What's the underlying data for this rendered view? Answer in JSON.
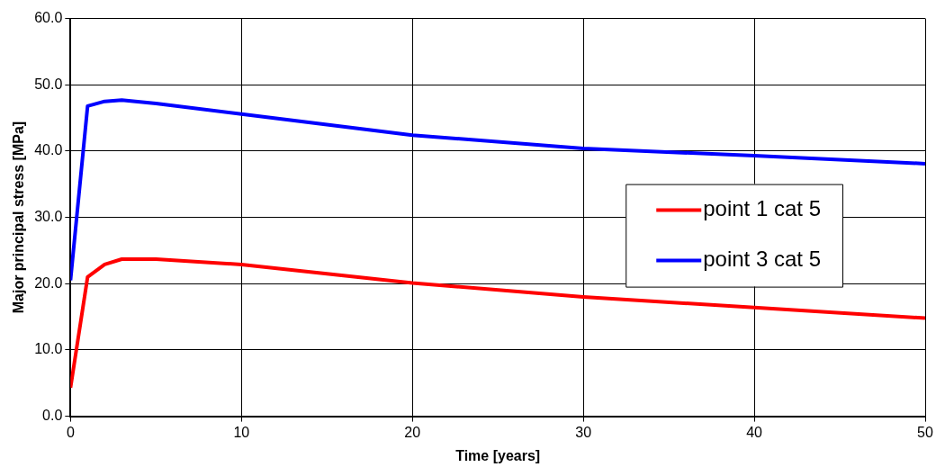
{
  "chart_data": {
    "type": "line",
    "xlabel": "Time [years]",
    "ylabel": "Major principal stress [MPa]",
    "xlim": [
      0,
      50
    ],
    "xticks": [
      0,
      10,
      20,
      30,
      40,
      50
    ],
    "ylim": [
      0,
      60
    ],
    "yticks": [
      {
        "value": 0,
        "label": "0.0"
      },
      {
        "value": 10,
        "label": "10.0"
      },
      {
        "value": 20,
        "label": "20.0"
      },
      {
        "value": 30,
        "label": "30.0"
      },
      {
        "value": 40,
        "label": "40.0"
      },
      {
        "value": 50,
        "label": "50.0"
      },
      {
        "value": 60,
        "label": "60.0"
      }
    ],
    "grid": true,
    "legend": "right",
    "marker": "none",
    "line_style": "solid",
    "x": [
      0,
      1,
      2,
      3,
      5,
      10,
      20,
      30,
      40,
      50
    ],
    "series": [
      {
        "name": "point 1 cat 5",
        "color": "#ff0000",
        "values": [
          4.3,
          21.0,
          22.9,
          23.7,
          23.7,
          22.9,
          20.1,
          18.0,
          16.4,
          14.8
        ]
      },
      {
        "name": "point 3 cat 5",
        "color": "#0000ff",
        "values": [
          20.5,
          46.8,
          47.5,
          47.7,
          47.2,
          45.6,
          42.4,
          40.4,
          39.3,
          38.1
        ]
      }
    ]
  }
}
